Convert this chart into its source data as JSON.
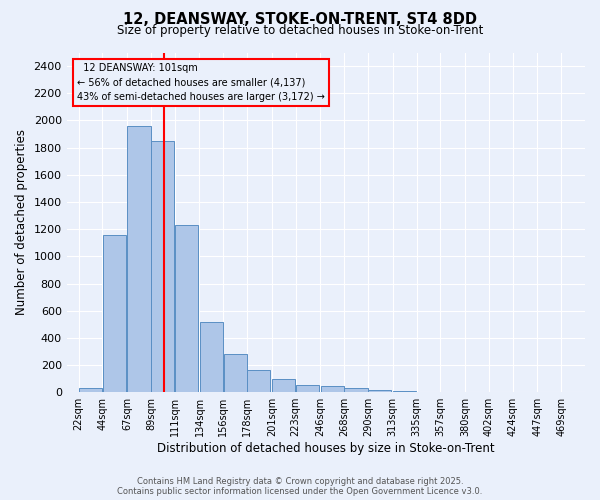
{
  "title": "12, DEANSWAY, STOKE-ON-TRENT, ST4 8DD",
  "subtitle": "Size of property relative to detached houses in Stoke-on-Trent",
  "xlabel": "Distribution of detached houses by size in Stoke-on-Trent",
  "ylabel": "Number of detached properties",
  "property_size": 101,
  "annotation_title": "12 DEANSWAY: 101sqm",
  "annotation_line1": "← 56% of detached houses are smaller (4,137)",
  "annotation_line2": "43% of semi-detached houses are larger (3,172) →",
  "footer_line1": "Contains HM Land Registry data © Crown copyright and database right 2025.",
  "footer_line2": "Contains public sector information licensed under the Open Government Licence v3.0.",
  "bar_color": "#aec6e8",
  "bar_edge_color": "#5a8fc4",
  "vline_color": "red",
  "annotation_box_color": "red",
  "bg_color": "#eaf0fb",
  "grid_color": "#ffffff",
  "ylim": [
    0,
    2500
  ],
  "yticks": [
    0,
    200,
    400,
    600,
    800,
    1000,
    1200,
    1400,
    1600,
    1800,
    2000,
    2200,
    2400
  ],
  "bins_start": [
    22,
    44,
    67,
    89,
    111,
    134,
    156,
    178,
    201,
    223,
    246,
    268,
    290,
    313,
    335,
    357,
    380,
    402,
    424,
    447
  ],
  "bin_labels": [
    "22sqm",
    "44sqm",
    "67sqm",
    "89sqm",
    "111sqm",
    "134sqm",
    "156sqm",
    "178sqm",
    "201sqm",
    "223sqm",
    "246sqm",
    "268sqm",
    "290sqm",
    "313sqm",
    "335sqm",
    "357sqm",
    "380sqm",
    "402sqm",
    "424sqm",
    "447sqm",
    "469sqm"
  ],
  "bar_heights": [
    30,
    1160,
    1960,
    1850,
    1230,
    520,
    280,
    160,
    100,
    50,
    45,
    30,
    15,
    8,
    5,
    5,
    4,
    3,
    2,
    2
  ]
}
